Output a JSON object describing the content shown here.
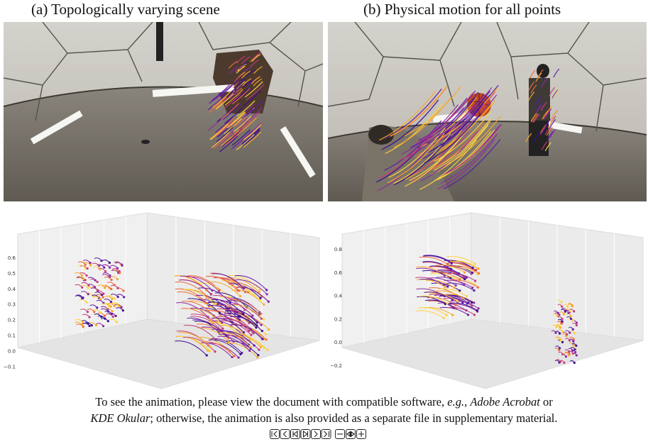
{
  "figure": {
    "panels": [
      {
        "title": "(a) Topologically varying scene",
        "plot_ticks": [
          "0.6",
          "0.5",
          "0.4",
          "0.3",
          "0.2",
          "0.1",
          "0.0",
          "−0.1"
        ]
      },
      {
        "title": "(b) Physical motion for all points",
        "plot_ticks": [
          "0.8",
          "0.6",
          "0.4",
          "0.2",
          "0.0",
          "−0.2"
        ]
      }
    ],
    "caption": {
      "line1": [
        "To see the animation, please view the document with compatible software, ",
        "e.g.",
        ", ",
        "Adobe Acrobat",
        " or"
      ],
      "line2": [
        "KDE Okular",
        "; otherwise, the animation is also provided as a separate file in supplementary material."
      ]
    }
  }
}
